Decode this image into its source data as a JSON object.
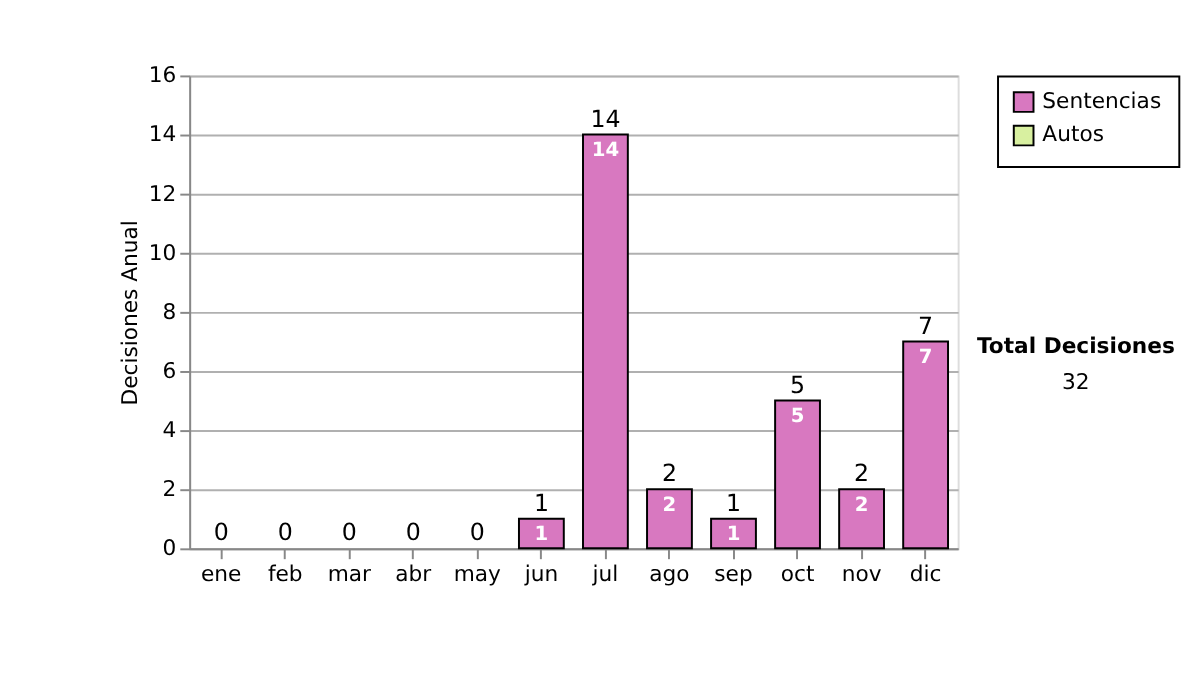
{
  "chart_data": {
    "type": "bar",
    "stacked": true,
    "ylabel": "Decisiones Anual",
    "categories": [
      "ene",
      "feb",
      "mar",
      "abr",
      "may",
      "jun",
      "jul",
      "ago",
      "sep",
      "oct",
      "nov",
      "dic"
    ],
    "series": [
      {
        "name": "Sentencias",
        "color": "#d878c0",
        "values": [
          0,
          0,
          0,
          0,
          0,
          1,
          14,
          2,
          1,
          5,
          2,
          7
        ],
        "value_labels": [
          null,
          null,
          null,
          null,
          null,
          "1",
          "14",
          "2",
          "1",
          "5",
          "2",
          "7"
        ]
      },
      {
        "name": "Autos",
        "color": "#d8f0a0",
        "values": [
          0,
          0,
          0,
          0,
          0,
          0,
          0,
          0,
          0,
          0,
          0,
          0
        ]
      }
    ],
    "totals": [
      "0",
      "0",
      "0",
      "0",
      "0",
      "1",
      "14",
      "2",
      "1",
      "5",
      "2",
      "7"
    ],
    "ylim": [
      0,
      16
    ],
    "yticks": [
      0,
      2,
      4,
      6,
      8,
      10,
      12,
      14,
      16
    ],
    "grid": "y",
    "legend": "right",
    "annotations": [
      "Total Decisiones",
      "32"
    ]
  }
}
